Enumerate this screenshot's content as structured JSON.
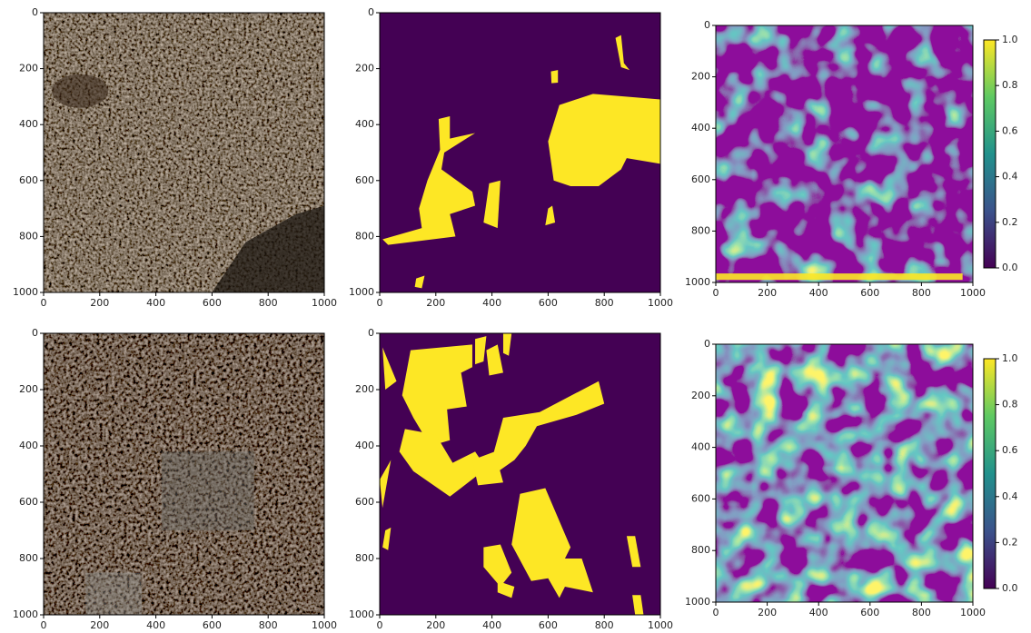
{
  "chart_data": [
    {
      "type": "image",
      "xlim": [
        0,
        1000
      ],
      "ylim": [
        1000,
        0
      ],
      "xticks": [
        0,
        200,
        400,
        600,
        800,
        1000
      ],
      "yticks": [
        0,
        200,
        400,
        600,
        800,
        1000
      ]
    },
    {
      "type": "image",
      "xlim": [
        0,
        1000
      ],
      "ylim": [
        1000,
        0
      ],
      "xticks": [
        0,
        200,
        400,
        600,
        800,
        1000
      ],
      "yticks": [
        0,
        200,
        400,
        600,
        800,
        1000
      ]
    },
    {
      "type": "image",
      "xlim": [
        0,
        1000
      ],
      "ylim": [
        1000,
        0
      ],
      "xticks": [
        0,
        200,
        400,
        600,
        800,
        1000
      ],
      "yticks": [
        0,
        200,
        400,
        600,
        800,
        1000
      ]
    },
    {
      "type": "colorbar",
      "colormap": "viridis",
      "ylim": [
        0,
        1
      ],
      "yticks": [
        {
          "value": 0,
          "label": "0.0"
        },
        0.2,
        0.4,
        0.6,
        0.8,
        {
          "value": 1,
          "label": "1.0"
        }
      ]
    },
    {
      "type": "image",
      "xlim": [
        0,
        1000
      ],
      "ylim": [
        1000,
        0
      ],
      "xticks": [
        0,
        200,
        400,
        600,
        800,
        1000
      ],
      "yticks": [
        0,
        200,
        400,
        600,
        800,
        1000
      ]
    },
    {
      "type": "image",
      "xlim": [
        0,
        1000
      ],
      "ylim": [
        1000,
        0
      ],
      "xticks": [
        0,
        200,
        400,
        600,
        800,
        1000
      ],
      "yticks": [
        0,
        200,
        400,
        600,
        800,
        1000
      ]
    },
    {
      "type": "image",
      "xlim": [
        0,
        1000
      ],
      "ylim": [
        1000,
        0
      ],
      "xticks": [
        0,
        200,
        400,
        600,
        800,
        1000
      ],
      "yticks": [
        0,
        200,
        400,
        600,
        800,
        1000
      ]
    },
    {
      "type": "colorbar",
      "colormap": "viridis",
      "ylim": [
        0,
        1
      ],
      "yticks": [
        {
          "value": 0,
          "label": "0.0"
        },
        0.2,
        0.4,
        0.6,
        0.8,
        {
          "value": 1,
          "label": "1.0"
        }
      ]
    }
  ]
}
